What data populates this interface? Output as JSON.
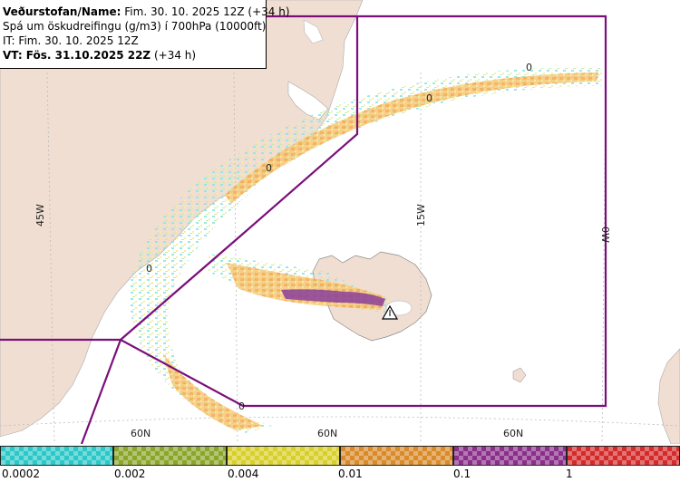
{
  "info": {
    "line1_label": "Veðurstofan/Name:",
    "line1_value": "Fim. 30. 10. 2025 12Z (+34 h)",
    "line2": "Spá um öskudreifingu (g/m3) í 700hPa (10000ft)",
    "line3": "IT: Fim. 30. 10. 2025 12Z",
    "line4_label": "VT: Fös. 31.10.2025 22Z",
    "line4_value": "(+34 h)"
  },
  "map": {
    "longitude_labels": [
      "45W",
      "15W",
      "0W"
    ],
    "latitude_labels": [
      "60N",
      "60N",
      "60N"
    ],
    "contour_labels": [
      "0",
      "0",
      "0",
      "0",
      "0"
    ],
    "colors": {
      "land": "#f0ded2",
      "sea": "#ffffff",
      "boundary": "#7a0f7a",
      "grid": "#bbbbbb"
    },
    "volcano_icon": "volcano-triangle-icon"
  },
  "legend": {
    "ticks": [
      "0.0002",
      "0.002",
      "0.004",
      "0.01",
      "0.1",
      "1"
    ],
    "colors": [
      "#2cc7c7",
      "#8aa62a",
      "#d8cf2a",
      "#d98b2a",
      "#8a2f8a",
      "#d42a2a"
    ],
    "names": [
      "cyan",
      "olive",
      "yellow",
      "orange",
      "purple",
      "red"
    ]
  }
}
